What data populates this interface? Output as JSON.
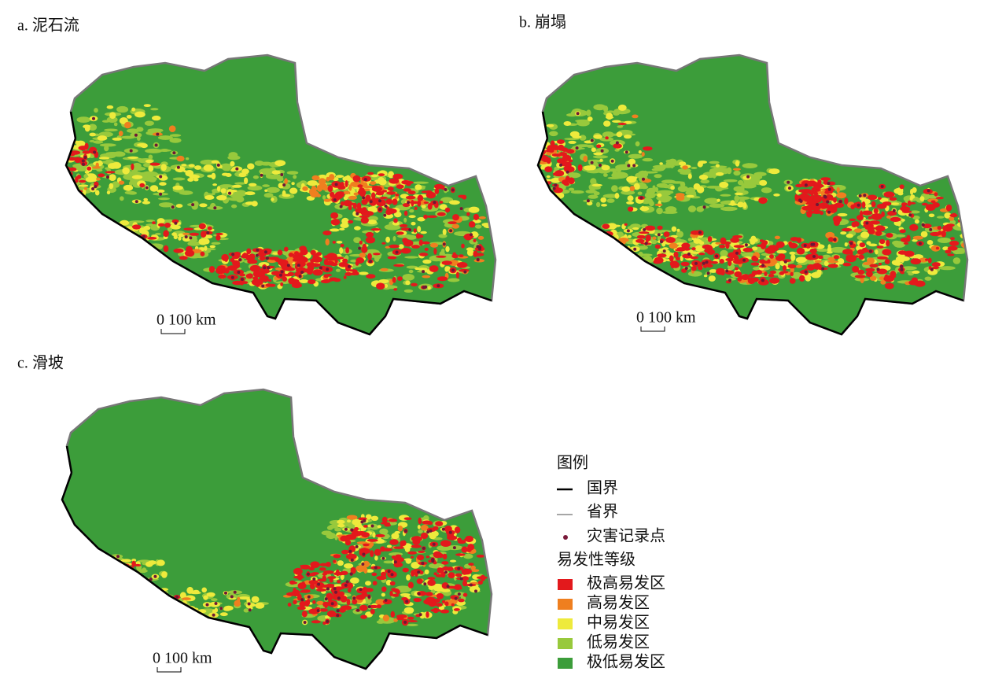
{
  "panels": [
    {
      "title": "a. 泥石流",
      "scale_label": "0 100 km"
    },
    {
      "title": "b. 崩塌",
      "scale_label": "0 100 km"
    },
    {
      "title": "c. 滑坡",
      "scale_label": "0 100 km"
    }
  ],
  "legend": {
    "title": "图例",
    "boundaries": [
      {
        "label": "国界"
      },
      {
        "label": "省界"
      },
      {
        "label": "灾害记录点"
      }
    ],
    "class_title": "易发性等级",
    "classes": [
      {
        "label": "极高易发区",
        "color": "#e3191c"
      },
      {
        "label": "高易发区",
        "color": "#ef7f1f"
      },
      {
        "label": "中易发区",
        "color": "#eeea3c"
      },
      {
        "label": "低易发区",
        "color": "#98c93c"
      },
      {
        "label": "极低易发区",
        "color": "#3c9d3a"
      }
    ]
  }
}
